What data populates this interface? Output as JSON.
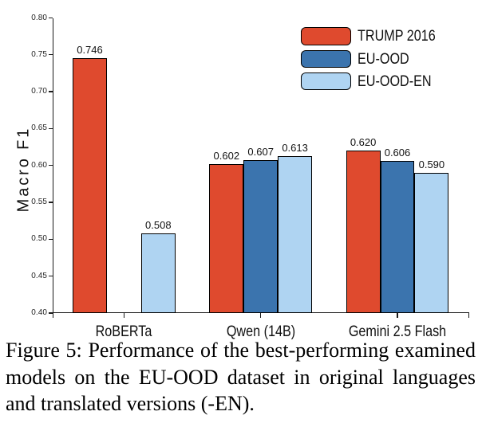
{
  "figure": {
    "caption_lines": [
      "Figure 5: Performance of the best-performing examined",
      "models on the EU-OOD dataset in original languages",
      "and translated versions (-EN)."
    ],
    "caption_text": "Figure 5: Performance of the best-performing examined models on the EU-OOD dataset in original languages and translated versions (-EN)."
  },
  "chart_data": {
    "type": "bar",
    "title": "",
    "xlabel": "",
    "ylabel": "Macro F1",
    "ylim": [
      0.4,
      0.8
    ],
    "ytick_step": 0.05,
    "ytick_labels": [
      "0.40",
      "0.45",
      "0.50",
      "0.55",
      "0.60",
      "0.65",
      "0.70",
      "0.75",
      "0.80"
    ],
    "categories": [
      "RoBERTa",
      "Qwen (14B)",
      "Gemini 2.5 Flash"
    ],
    "series": [
      {
        "name": "TRUMP 2016",
        "color": "#DF4A2E",
        "values": [
          0.746,
          0.602,
          0.62
        ]
      },
      {
        "name": "EU-OOD",
        "color": "#3B74AE",
        "values": [
          null,
          0.607,
          0.606
        ]
      },
      {
        "name": "EU-OOD-EN",
        "color": "#AFD4F2",
        "values": [
          0.508,
          0.613,
          0.59
        ]
      }
    ],
    "bar_value_labels": true,
    "value_label_format": "3-decimals",
    "legend_position": "upper right",
    "grid": false,
    "axis_color": "#1a1a1a"
  }
}
